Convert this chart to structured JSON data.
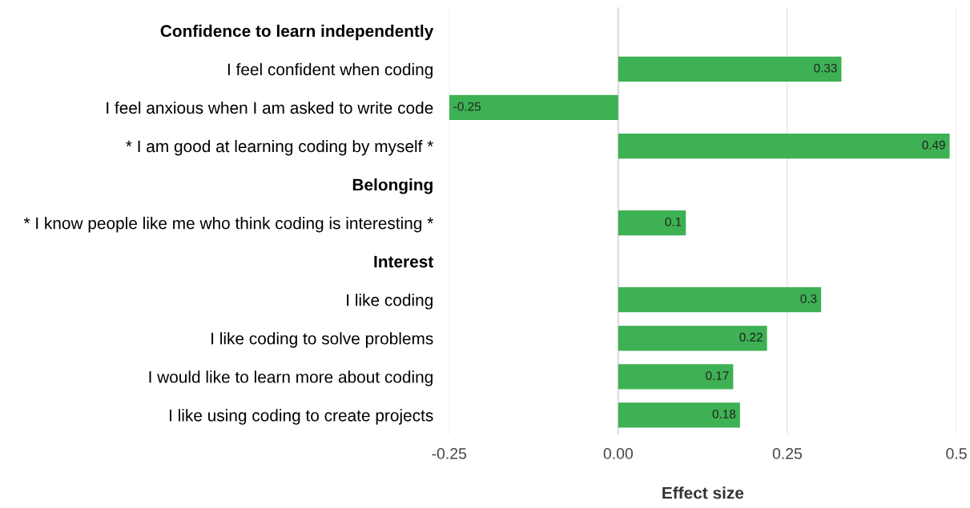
{
  "chart_data": {
    "type": "bar",
    "orientation": "horizontal",
    "xlabel": "Effect size",
    "categories": [
      "Confidence to learn independently",
      "I feel confident when coding",
      "I feel anxious when I am asked to write code",
      "* I am good at learning coding by myself *",
      "Belonging",
      "* I know people like me who think coding is interesting *",
      "Interest",
      "I like coding",
      "I like coding to solve problems",
      "I would like to learn more about coding",
      "I like using coding to create projects"
    ],
    "values": [
      null,
      0.33,
      -0.25,
      0.49,
      null,
      0.1,
      null,
      0.3,
      0.22,
      0.17,
      0.18
    ],
    "color": "#3db153",
    "data_labels": true,
    "xlim": [
      -0.25,
      0.5
    ],
    "xticks": [
      -0.25,
      {
        "value": 0,
        "label": "0.00"
      },
      0.25,
      0.5
    ],
    "grid": "x",
    "legend": false,
    "ref_lines": [
      {
        "axis": "x",
        "value": 0,
        "color": "#c8c8c8"
      }
    ]
  }
}
